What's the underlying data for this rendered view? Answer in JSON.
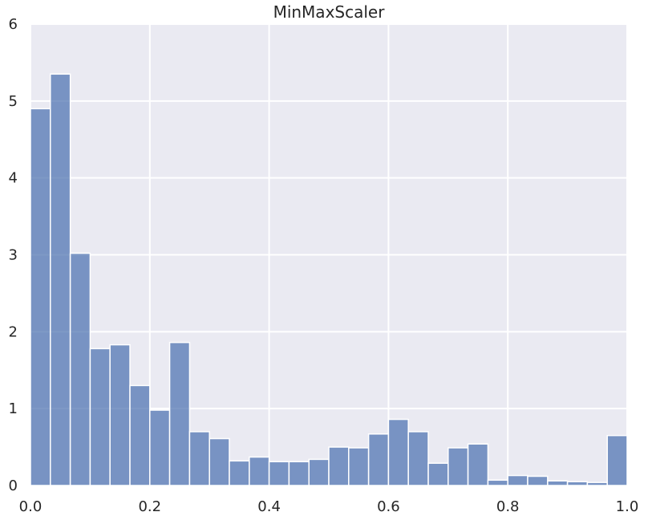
{
  "chart_data": {
    "type": "bar",
    "title": "MinMaxScaler",
    "xlabel": "",
    "ylabel": "",
    "xlim": [
      0.0,
      1.0
    ],
    "ylim": [
      0,
      6
    ],
    "grid": true,
    "colors": {
      "background": "#eaeaf2",
      "grid": "#ffffff",
      "bar": "#4c72b0",
      "bar_edge": "#ffffff",
      "text": "#262626"
    },
    "bin_edges": [
      0,
      0.0333,
      0.0667,
      0.1,
      0.1333,
      0.1667,
      0.2,
      0.2333,
      0.2667,
      0.3,
      0.3333,
      0.3667,
      0.4,
      0.4333,
      0.4667,
      0.5,
      0.5333,
      0.5667,
      0.6,
      0.6333,
      0.6667,
      0.7,
      0.7333,
      0.7667,
      0.8,
      0.8333,
      0.8667,
      0.9,
      0.9333,
      0.9667,
      1.0
    ],
    "values": [
      4.9,
      5.35,
      3.02,
      1.78,
      1.83,
      1.3,
      0.98,
      1.86,
      0.7,
      0.61,
      0.32,
      0.37,
      0.31,
      0.31,
      0.34,
      0.5,
      0.49,
      0.67,
      0.86,
      0.7,
      0.29,
      0.49,
      0.54,
      0.07,
      0.13,
      0.12,
      0.06,
      0.05,
      0.04,
      0.65
    ],
    "x_ticks": [
      {
        "value": 0.0,
        "label": "0.0"
      },
      {
        "value": 0.2,
        "label": "0.2"
      },
      {
        "value": 0.4,
        "label": "0.4"
      },
      {
        "value": 0.6,
        "label": "0.6"
      },
      {
        "value": 0.8,
        "label": "0.8"
      },
      {
        "value": 1.0,
        "label": "1.0"
      }
    ],
    "y_ticks": [
      {
        "value": 0,
        "label": "0"
      },
      {
        "value": 1,
        "label": "1"
      },
      {
        "value": 2,
        "label": "2"
      },
      {
        "value": 3,
        "label": "3"
      },
      {
        "value": 4,
        "label": "4"
      },
      {
        "value": 5,
        "label": "5"
      },
      {
        "value": 6,
        "label": "6"
      }
    ]
  }
}
